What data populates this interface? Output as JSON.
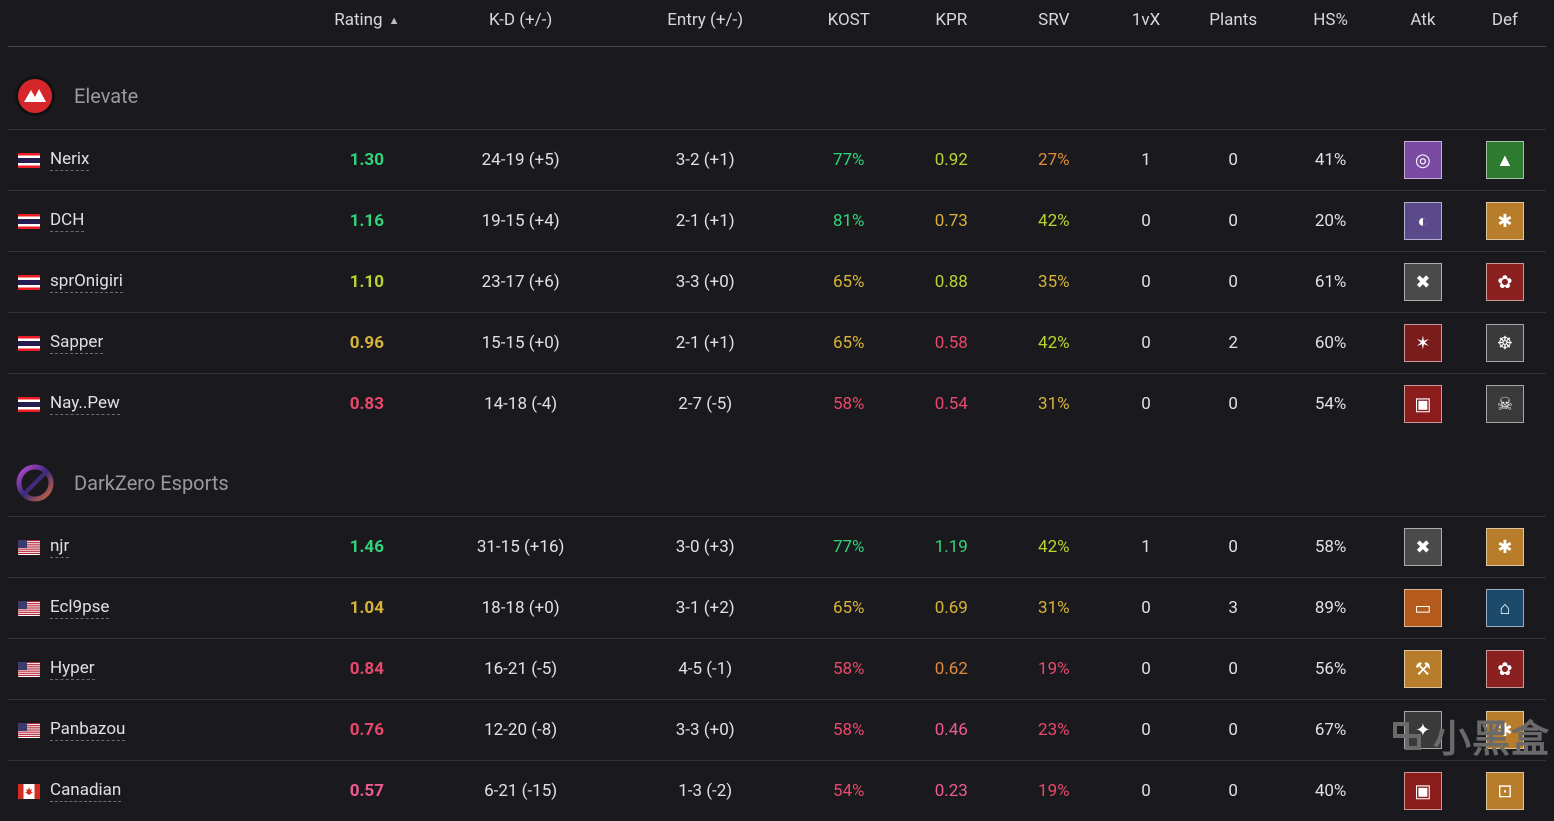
{
  "colors": {
    "bg": "#1a1a1e",
    "text": "#e4e4e4",
    "muted": "#9a9a9a",
    "border": "#333333",
    "headerBorder": "#4a4a4a",
    "green": "#31d47a",
    "lime": "#b8d430",
    "yellow": "#d8b339",
    "orange": "#e08a3a",
    "red": "#e8486c",
    "pink": "#ef5a8f"
  },
  "columns": [
    {
      "key": "player",
      "label": "",
      "width": "290"
    },
    {
      "key": "rating",
      "label": "Rating",
      "width": "120",
      "sort": true
    },
    {
      "key": "kd",
      "label": "K-D (+/-)",
      "width": "180"
    },
    {
      "key": "entry",
      "label": "Entry (+/-)",
      "width": "180"
    },
    {
      "key": "kost",
      "label": "KOST",
      "width": "100"
    },
    {
      "key": "kpr",
      "label": "KPR",
      "width": "100"
    },
    {
      "key": "srv",
      "label": "SRV",
      "width": "100"
    },
    {
      "key": "v1x",
      "label": "1vX",
      "width": "80"
    },
    {
      "key": "plants",
      "label": "Plants",
      "width": "90"
    },
    {
      "key": "hs",
      "label": "HS%",
      "width": "100"
    },
    {
      "key": "atk",
      "label": "Atk",
      "width": "80"
    },
    {
      "key": "def",
      "label": "Def",
      "width": "80"
    }
  ],
  "teams": [
    {
      "name": "Elevate",
      "logo": {
        "bg": "#111",
        "accent": "#d6262c",
        "type": "mountain"
      },
      "players": [
        {
          "flag": "th",
          "name": "Nerix",
          "rating": {
            "v": "1.30",
            "c": "green"
          },
          "kd": "24-19 (+5)",
          "entry": "3-2 (+1)",
          "kost": {
            "v": "77%",
            "c": "green"
          },
          "kpr": {
            "v": "0.92",
            "c": "lime"
          },
          "srv": {
            "v": "27%",
            "c": "orange"
          },
          "v1x": "1",
          "plants": "0",
          "hs": "41%",
          "atk": {
            "bg": "#7a4aa3",
            "glyph": "◎"
          },
          "def": {
            "bg": "#2e7a2e",
            "glyph": "▲"
          }
        },
        {
          "flag": "th",
          "name": "DCH",
          "rating": {
            "v": "1.16",
            "c": "green"
          },
          "kd": "19-15 (+4)",
          "entry": "2-1 (+1)",
          "kost": {
            "v": "81%",
            "c": "green"
          },
          "kpr": {
            "v": "0.73",
            "c": "yellow"
          },
          "srv": {
            "v": "42%",
            "c": "lime"
          },
          "v1x": "0",
          "plants": "0",
          "hs": "20%",
          "atk": {
            "bg": "#5a4a8c",
            "glyph": "◐"
          },
          "def": {
            "bg": "#b87d2a",
            "glyph": "✱"
          }
        },
        {
          "flag": "th",
          "name": "sprOnigiri",
          "rating": {
            "v": "1.10",
            "c": "lime"
          },
          "kd": "23-17 (+6)",
          "entry": "3-3 (+0)",
          "kost": {
            "v": "65%",
            "c": "yellow"
          },
          "kpr": {
            "v": "0.88",
            "c": "lime"
          },
          "srv": {
            "v": "35%",
            "c": "yellow"
          },
          "v1x": "0",
          "plants": "0",
          "hs": "61%",
          "atk": {
            "bg": "#4a4a4a",
            "glyph": "✖"
          },
          "def": {
            "bg": "#8a2020",
            "glyph": "✿"
          }
        },
        {
          "flag": "th",
          "name": "Sapper",
          "rating": {
            "v": "0.96",
            "c": "yellow"
          },
          "kd": "15-15 (+0)",
          "entry": "2-1 (+1)",
          "kost": {
            "v": "65%",
            "c": "yellow"
          },
          "kpr": {
            "v": "0.58",
            "c": "red"
          },
          "srv": {
            "v": "42%",
            "c": "lime"
          },
          "v1x": "0",
          "plants": "2",
          "hs": "60%",
          "atk": {
            "bg": "#7a1c1c",
            "glyph": "✶"
          },
          "def": {
            "bg": "#3a3a3a",
            "glyph": "☸"
          }
        },
        {
          "flag": "th",
          "name": "Nay..Pew",
          "rating": {
            "v": "0.83",
            "c": "red"
          },
          "kd": "14-18 (-4)",
          "entry": "2-7 (-5)",
          "kost": {
            "v": "58%",
            "c": "red"
          },
          "kpr": {
            "v": "0.54",
            "c": "red"
          },
          "srv": {
            "v": "31%",
            "c": "yellow"
          },
          "v1x": "0",
          "plants": "0",
          "hs": "54%",
          "atk": {
            "bg": "#8a1c1c",
            "glyph": "▣"
          },
          "def": {
            "bg": "#3a3a3a",
            "glyph": "☠"
          }
        }
      ]
    },
    {
      "name": "DarkZero Esports",
      "logo": {
        "bg": "transparent",
        "accent": "#8a3ab8",
        "type": "ring"
      },
      "players": [
        {
          "flag": "us",
          "name": "njr",
          "rating": {
            "v": "1.46",
            "c": "green"
          },
          "kd": "31-15 (+16)",
          "entry": "3-0 (+3)",
          "kost": {
            "v": "77%",
            "c": "green"
          },
          "kpr": {
            "v": "1.19",
            "c": "green"
          },
          "srv": {
            "v": "42%",
            "c": "lime"
          },
          "v1x": "1",
          "plants": "0",
          "hs": "58%",
          "atk": {
            "bg": "#4a4a4a",
            "glyph": "✖"
          },
          "def": {
            "bg": "#b87d2a",
            "glyph": "✱"
          }
        },
        {
          "flag": "us",
          "name": "Ecl9pse",
          "rating": {
            "v": "1.04",
            "c": "yellow"
          },
          "kd": "18-18 (+0)",
          "entry": "3-1 (+2)",
          "kost": {
            "v": "65%",
            "c": "yellow"
          },
          "kpr": {
            "v": "0.69",
            "c": "yellow"
          },
          "srv": {
            "v": "31%",
            "c": "yellow"
          },
          "v1x": "0",
          "plants": "3",
          "hs": "89%",
          "atk": {
            "bg": "#b35a1c",
            "glyph": "▭"
          },
          "def": {
            "bg": "#1c4a6a",
            "glyph": "⌂"
          }
        },
        {
          "flag": "us",
          "name": "Hyper",
          "rating": {
            "v": "0.84",
            "c": "red"
          },
          "kd": "16-21 (-5)",
          "entry": "4-5 (-1)",
          "kost": {
            "v": "58%",
            "c": "red"
          },
          "kpr": {
            "v": "0.62",
            "c": "orange"
          },
          "srv": {
            "v": "19%",
            "c": "red"
          },
          "v1x": "0",
          "plants": "0",
          "hs": "56%",
          "atk": {
            "bg": "#b87d2a",
            "glyph": "⚒"
          },
          "def": {
            "bg": "#8a2020",
            "glyph": "✿"
          }
        },
        {
          "flag": "us",
          "name": "Panbazou",
          "rating": {
            "v": "0.76",
            "c": "red"
          },
          "kd": "12-20 (-8)",
          "entry": "3-3 (+0)",
          "kost": {
            "v": "58%",
            "c": "red"
          },
          "kpr": {
            "v": "0.46",
            "c": "pink"
          },
          "srv": {
            "v": "23%",
            "c": "red"
          },
          "v1x": "0",
          "plants": "0",
          "hs": "67%",
          "atk": {
            "bg": "#3a3a3a",
            "glyph": "✦"
          },
          "def": {
            "bg": "#b87d2a",
            "glyph": "✱"
          }
        },
        {
          "flag": "ca",
          "name": "Canadian",
          "rating": {
            "v": "0.57",
            "c": "pink"
          },
          "kd": "6-21 (-15)",
          "entry": "1-3 (-2)",
          "kost": {
            "v": "54%",
            "c": "red"
          },
          "kpr": {
            "v": "0.23",
            "c": "pink"
          },
          "srv": {
            "v": "19%",
            "c": "red"
          },
          "v1x": "0",
          "plants": "0",
          "hs": "40%",
          "atk": {
            "bg": "#8a1c1c",
            "glyph": "▣"
          },
          "def": {
            "bg": "#b87d2a",
            "glyph": "⊡"
          }
        }
      ]
    }
  ],
  "watermark": "小黑盒"
}
